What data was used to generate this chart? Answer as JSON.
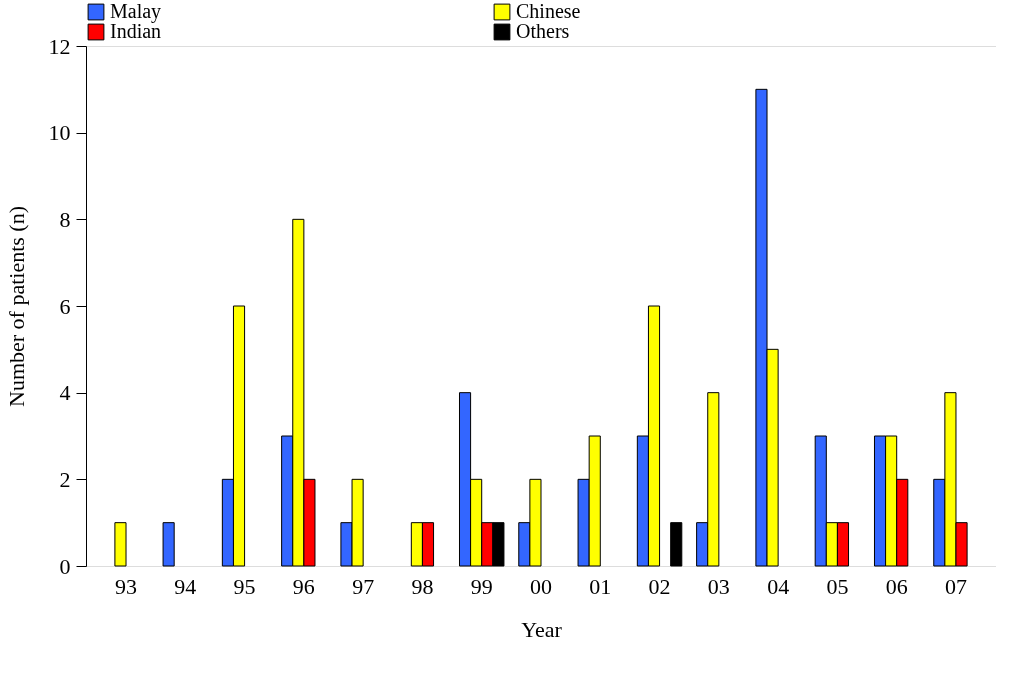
{
  "chart_data": {
    "type": "bar",
    "xlabel": "Year",
    "ylabel": "Number of patients (n)",
    "categories": [
      "93",
      "94",
      "95",
      "96",
      "97",
      "98",
      "99",
      "00",
      "01",
      "02",
      "03",
      "04",
      "05",
      "06",
      "07"
    ],
    "series": [
      {
        "name": "Malay",
        "color": "#3366ff",
        "values": [
          null,
          1,
          2,
          3,
          1,
          null,
          4,
          1,
          2,
          3,
          1,
          11,
          3,
          3,
          2
        ]
      },
      {
        "name": "Chinese",
        "color": "#ffff00",
        "values": [
          1,
          null,
          6,
          8,
          2,
          1,
          2,
          2,
          3,
          6,
          4,
          5,
          1,
          3,
          4
        ]
      },
      {
        "name": "Indian",
        "color": "#ff0000",
        "values": [
          null,
          null,
          null,
          2,
          null,
          1,
          1,
          null,
          null,
          null,
          null,
          null,
          1,
          2,
          1
        ]
      },
      {
        "name": "Others",
        "color": "#000000",
        "values": [
          null,
          null,
          null,
          null,
          null,
          null,
          1,
          null,
          null,
          1,
          null,
          null,
          null,
          null,
          null
        ]
      }
    ],
    "ylim": [
      0,
      12
    ],
    "yticks": [
      0,
      2,
      4,
      6,
      8,
      10,
      12
    ],
    "grid": false,
    "legend": "top"
  }
}
